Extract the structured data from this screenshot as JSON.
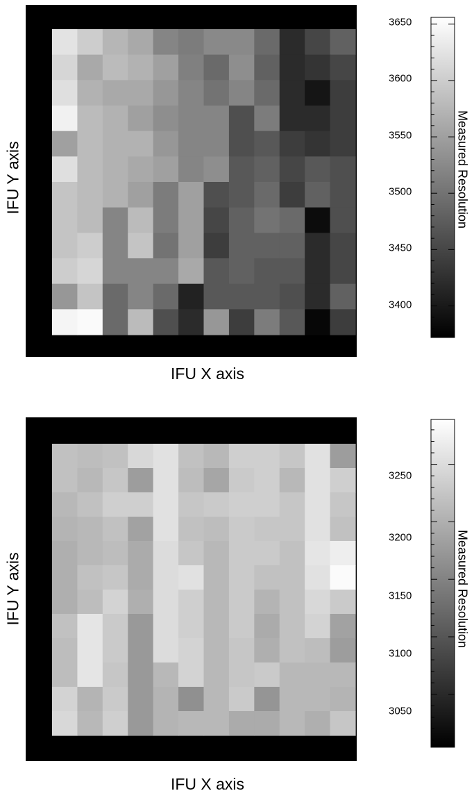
{
  "chart_data": [
    {
      "type": "heatmap",
      "xlabel": "IFU X axis",
      "ylabel": "IFU Y axis",
      "colorbar_label": "Measured Resolution",
      "colormap": "grayscale (black = low, white = high)",
      "zlim": [
        3372,
        3656
      ],
      "colorbar_ticks": [
        "3400",
        "3450",
        "3500",
        "3550",
        "3600",
        "3650"
      ],
      "tick_values": [
        3400,
        3450,
        3500,
        3550,
        3600,
        3650
      ],
      "rows_top_to_bottom": [
        [
          3625,
          3600,
          3575,
          3560,
          3520,
          3510,
          3525,
          3525,
          3490,
          3420,
          3450,
          3480
        ],
        [
          3610,
          3560,
          3580,
          3570,
          3550,
          3515,
          3490,
          3530,
          3480,
          3420,
          3430,
          3450
        ],
        [
          3620,
          3570,
          3560,
          3560,
          3540,
          3520,
          3500,
          3520,
          3490,
          3420,
          3395,
          3440
        ],
        [
          3640,
          3580,
          3570,
          3550,
          3530,
          3520,
          3520,
          3460,
          3510,
          3420,
          3420,
          3440
        ],
        [
          3550,
          3580,
          3570,
          3570,
          3540,
          3520,
          3520,
          3460,
          3470,
          3440,
          3430,
          3440
        ],
        [
          3620,
          3580,
          3570,
          3560,
          3550,
          3520,
          3530,
          3470,
          3480,
          3450,
          3470,
          3460
        ],
        [
          3590,
          3580,
          3570,
          3550,
          3510,
          3550,
          3460,
          3470,
          3490,
          3440,
          3480,
          3460
        ],
        [
          3590,
          3580,
          3520,
          3580,
          3510,
          3550,
          3450,
          3480,
          3500,
          3490,
          3385,
          3460
        ],
        [
          3590,
          3600,
          3520,
          3590,
          3500,
          3550,
          3440,
          3480,
          3480,
          3480,
          3420,
          3450
        ],
        [
          3600,
          3610,
          3520,
          3520,
          3520,
          3560,
          3470,
          3480,
          3470,
          3470,
          3420,
          3450
        ],
        [
          3540,
          3590,
          3490,
          3520,
          3490,
          3410,
          3470,
          3470,
          3470,
          3460,
          3420,
          3480
        ],
        [
          3645,
          3650,
          3490,
          3580,
          3460,
          3420,
          3540,
          3440,
          3510,
          3470,
          3380,
          3440
        ]
      ]
    },
    {
      "type": "heatmap",
      "xlabel": "IFU X axis",
      "ylabel": "IFU Y axis",
      "colorbar_label": "Measured Resolution",
      "colormap": "grayscale (black = low, white = high)",
      "zlim": [
        3004,
        3289
      ],
      "colorbar_ticks": [
        "3050",
        "3100",
        "3150",
        "3200",
        "3250"
      ],
      "tick_values": [
        3050,
        3100,
        3150,
        3200,
        3250
      ],
      "rows_top_to_bottom": [
        [
          3220,
          3215,
          3220,
          3245,
          3255,
          3220,
          3210,
          3235,
          3235,
          3225,
          3255,
          3180
        ],
        [
          3220,
          3210,
          3225,
          3180,
          3255,
          3215,
          3190,
          3230,
          3235,
          3210,
          3255,
          3235
        ],
        [
          3210,
          3220,
          3235,
          3235,
          3255,
          3225,
          3230,
          3235,
          3235,
          3225,
          3255,
          3225
        ],
        [
          3205,
          3210,
          3220,
          3185,
          3255,
          3220,
          3215,
          3230,
          3225,
          3225,
          3255,
          3220
        ],
        [
          3200,
          3210,
          3215,
          3195,
          3250,
          3225,
          3210,
          3230,
          3230,
          3220,
          3260,
          3270
        ],
        [
          3200,
          3220,
          3225,
          3195,
          3250,
          3255,
          3210,
          3230,
          3220,
          3220,
          3255,
          3285
        ],
        [
          3200,
          3215,
          3240,
          3200,
          3250,
          3235,
          3210,
          3230,
          3205,
          3220,
          3245,
          3230
        ],
        [
          3220,
          3260,
          3230,
          3175,
          3250,
          3235,
          3210,
          3230,
          3195,
          3220,
          3240,
          3185
        ],
        [
          3215,
          3260,
          3230,
          3175,
          3250,
          3240,
          3210,
          3225,
          3200,
          3220,
          3215,
          3180
        ],
        [
          3215,
          3260,
          3225,
          3175,
          3210,
          3240,
          3210,
          3225,
          3230,
          3210,
          3210,
          3210
        ],
        [
          3240,
          3205,
          3230,
          3175,
          3205,
          3165,
          3210,
          3230,
          3170,
          3210,
          3210,
          3205
        ],
        [
          3245,
          3210,
          3235,
          3175,
          3205,
          3210,
          3210,
          3195,
          3195,
          3210,
          3200,
          3225
        ]
      ]
    }
  ]
}
